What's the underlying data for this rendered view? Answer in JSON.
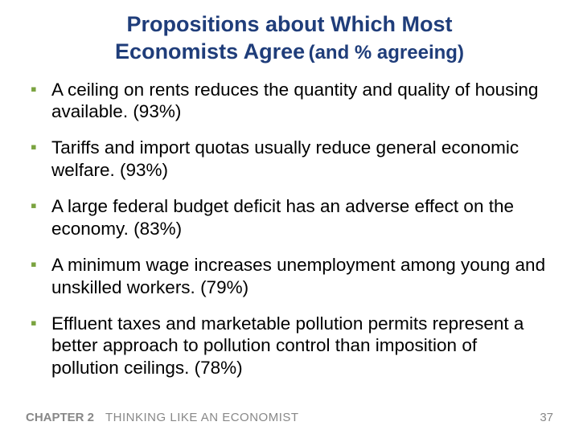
{
  "title": {
    "line1": "Propositions about Which Most",
    "line2_main": "Economists Agree",
    "line2_sub": "(and % agreeing)"
  },
  "colors": {
    "title_color": "#1f3d7a",
    "bullet_mark_color": "#7aa33f",
    "body_text_color": "#000000",
    "footer_color": "#888888",
    "background": "#ffffff"
  },
  "typography": {
    "title_fontsize": 27,
    "subtitle_fontsize": 24,
    "body_fontsize": 22.5,
    "footer_fontsize": 15,
    "font_family": "Arial"
  },
  "bullets": [
    {
      "text": "A ceiling on rents reduces the quantity and quality of housing available.  (93%)"
    },
    {
      "text": "Tariffs and import quotas usually reduce general economic welfare.  (93%)"
    },
    {
      "text": "A large federal budget deficit has an adverse effect on the economy.  (83%)"
    },
    {
      "text": "A minimum wage increases unemployment among young and unskilled workers.  (79%)"
    },
    {
      "text": "Effluent taxes and marketable pollution permits represent a better approach to pollution control than imposition of pollution ceilings.  (78%)"
    }
  ],
  "footer": {
    "chapter": "CHAPTER 2",
    "chapter_title": "THINKING LIKE AN ECONOMIST",
    "page_number": "37"
  }
}
